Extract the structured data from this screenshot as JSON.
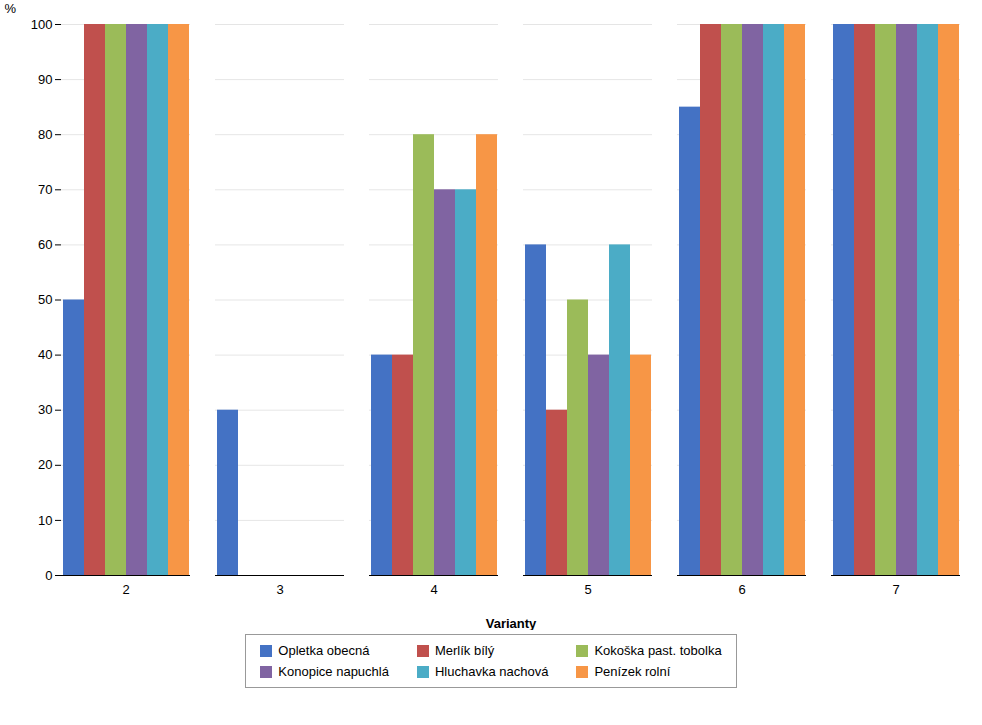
{
  "chart_data": {
    "type": "bar",
    "xlabel": "Varianty",
    "ylabel": "%",
    "categories": [
      "2",
      "3",
      "4",
      "5",
      "6",
      "7"
    ],
    "series": [
      {
        "name": "Opletka obecná",
        "color": "#4472C4",
        "values": [
          50,
          30,
          40,
          60,
          85,
          100
        ]
      },
      {
        "name": "Merlík bílý",
        "color": "#C0504D",
        "values": [
          100,
          0,
          40,
          30,
          100,
          100
        ]
      },
      {
        "name": "Kokoška past. tobolka",
        "color": "#9BBB59",
        "values": [
          100,
          0,
          80,
          50,
          100,
          100
        ]
      },
      {
        "name": "Konopice napuchlá",
        "color": "#8064A2",
        "values": [
          100,
          0,
          70,
          40,
          100,
          100
        ]
      },
      {
        "name": "Hluchavka nachová",
        "color": "#4BACC6",
        "values": [
          100,
          0,
          70,
          60,
          100,
          100
        ]
      },
      {
        "name": "Penízek rolní",
        "color": "#F79646",
        "values": [
          100,
          0,
          80,
          40,
          100,
          100
        ]
      }
    ],
    "ylim": [
      0,
      100
    ],
    "yticks": [
      0,
      10,
      20,
      30,
      40,
      50,
      60,
      70,
      80,
      90,
      100
    ],
    "grid": true,
    "legend": "bottom"
  }
}
